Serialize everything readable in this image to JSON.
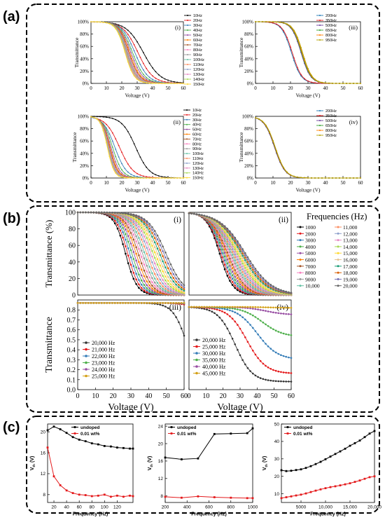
{
  "figure": {
    "panel_labels": [
      "(a)",
      "(b)",
      "(c)"
    ]
  },
  "chart_data": [
    {
      "id": "a-i",
      "type": "line",
      "panel": "(i)",
      "xlabel": "Voltage (V)",
      "ylabel": "Transmittance",
      "xlim": [
        0,
        60
      ],
      "xticks": [
        0,
        10,
        20,
        30,
        40,
        50,
        60
      ],
      "ylim": [
        0,
        100
      ],
      "yticks": [
        0,
        20,
        40,
        60,
        80,
        100
      ],
      "ytick_labels": [
        "0%",
        "20%",
        "40%",
        "60%",
        "80%",
        "100%"
      ],
      "legend": [
        "10Hz",
        "20Hz",
        "30Hz",
        "40Hz",
        "50Hz",
        "60Hz",
        "70Hz",
        "80Hz",
        "90Hz",
        "100Hz",
        "110Hz",
        "120Hz",
        "130Hz",
        "140Hz",
        "150Hz"
      ],
      "model": "sigmoid",
      "v50": [
        34.0,
        30.5,
        28.5,
        27.0,
        26.0,
        25.2,
        24.6,
        24.1,
        23.7,
        23.3,
        23.0,
        22.7,
        22.5,
        22.3,
        22.1
      ],
      "width": [
        5.5,
        4.8,
        4.3,
        4.0,
        3.8,
        3.6,
        3.5,
        3.4,
        3.3,
        3.2,
        3.2,
        3.1,
        3.1,
        3.0,
        3.0
      ],
      "ymax": [
        100,
        100,
        100,
        100,
        100,
        100,
        100,
        100,
        100,
        100,
        100,
        100,
        100,
        100,
        100
      ]
    },
    {
      "id": "a-iii",
      "type": "line",
      "panel": "(iii)",
      "xlabel": "Voltage (V)",
      "ylabel": "Transmittance",
      "xlim": [
        0,
        60
      ],
      "xticks": [
        0,
        10,
        20,
        30,
        40,
        50,
        60
      ],
      "ylim": [
        0,
        100
      ],
      "yticks": [
        0,
        20,
        40,
        60,
        80,
        100
      ],
      "ytick_labels": [
        "0%",
        "20%",
        "40%",
        "60%",
        "80%",
        "100%"
      ],
      "legend": [
        "200Hz",
        "350Hz",
        "500Hz",
        "650Hz",
        "800Hz",
        "950Hz"
      ],
      "model": "sigmoid",
      "v50": [
        20.5,
        21.0,
        26.0,
        26.3,
        26.6,
        26.9
      ],
      "width": [
        2.8,
        2.8,
        2.7,
        2.7,
        2.7,
        2.7
      ],
      "ymax": [
        100,
        100,
        100,
        100,
        100,
        100
      ]
    },
    {
      "id": "a-ii",
      "type": "line",
      "panel": "(ii)",
      "xlabel": "Voltage (V)",
      "ylabel": "Transmittance",
      "xlim": [
        0,
        60
      ],
      "xticks": [
        0,
        10,
        20,
        30,
        40,
        50,
        60
      ],
      "ylim": [
        0,
        100
      ],
      "yticks": [
        0,
        20,
        40,
        60,
        80,
        100
      ],
      "ytick_labels": [
        "0%",
        "20%",
        "40%",
        "60%",
        "80%",
        "100%"
      ],
      "legend": [
        "10Hz",
        "20Hz",
        "30Hz",
        "40Hz",
        "50Hz",
        "60Hz",
        "70Hz",
        "80Hz",
        "90Hz",
        "100Hz",
        "110Hz",
        "120Hz",
        "130Hz",
        "140Hz",
        "150Hz"
      ],
      "model": "sigmoid",
      "v50": [
        29.0,
        18.5,
        15.5,
        14.0,
        13.0,
        12.4,
        12.0,
        11.7,
        11.4,
        11.2,
        11.0,
        10.9,
        10.8,
        10.7,
        10.6
      ],
      "width": [
        4.5,
        4.5,
        3.8,
        3.2,
        2.9,
        2.7,
        2.6,
        2.5,
        2.4,
        2.4,
        2.3,
        2.3,
        2.3,
        2.2,
        2.2
      ],
      "ymax": [
        100,
        100,
        100,
        100,
        100,
        100,
        100,
        100,
        100,
        100,
        100,
        100,
        100,
        100,
        100
      ]
    },
    {
      "id": "a-iv",
      "type": "line",
      "panel": "(iv)",
      "xlabel": "Voltage (V)",
      "ylabel": "Transmittance",
      "xlim": [
        0,
        60
      ],
      "xticks": [
        0,
        10,
        20,
        30,
        40,
        50,
        60
      ],
      "ylim": [
        0,
        100
      ],
      "yticks": [
        0,
        20,
        40,
        60,
        80,
        100
      ],
      "ytick_labels": [
        "0%",
        "20%",
        "40%",
        "60%",
        "80%",
        "100%"
      ],
      "legend": [
        "200Hz",
        "350Hz",
        "500Hz",
        "650Hz",
        "800Hz",
        "950Hz"
      ],
      "model": "sigmoid",
      "v50": [
        10.8,
        10.9,
        11.0,
        11.1,
        11.2,
        11.3
      ],
      "width": [
        3.0,
        3.0,
        3.0,
        3.0,
        3.0,
        3.0
      ],
      "ymax": [
        100,
        100,
        100,
        100,
        100,
        100
      ]
    },
    {
      "id": "b-i",
      "type": "line",
      "panel": "(i)",
      "xlabel": "",
      "ylabel": "Transmittance (%)",
      "xlim": [
        0,
        60
      ],
      "xticks": [],
      "ylim": [
        0,
        100
      ],
      "yticks": [
        0,
        20,
        40,
        60,
        80,
        100
      ],
      "ytick_labels": [
        "0",
        "20",
        "40",
        "60",
        "80",
        "100"
      ],
      "legend": [
        "1000",
        "2000",
        "3000",
        "4000",
        "5000",
        "6000",
        "7000",
        "8000",
        "9000",
        "10,000",
        "11,000",
        "12,000",
        "13,000",
        "14,000",
        "15,000",
        "16,000",
        "17,000",
        "18,000",
        "19,000",
        "20,000"
      ],
      "model": "sigmoid",
      "v50": [
        27.0,
        28.2,
        29.4,
        30.6,
        31.8,
        33.0,
        34.2,
        35.4,
        36.6,
        37.8,
        39.0,
        40.2,
        41.4,
        42.6,
        43.8,
        45.0,
        46.2,
        47.4,
        48.6,
        49.8
      ],
      "width": [
        3.2,
        3.3,
        3.4,
        3.5,
        3.6,
        3.7,
        3.8,
        3.9,
        4.0,
        4.1,
        4.2,
        4.3,
        4.4,
        4.5,
        4.6,
        4.7,
        4.8,
        4.9,
        5.0,
        5.1
      ],
      "ymax": [
        100,
        100,
        100,
        100,
        100,
        100,
        100,
        100,
        100,
        100,
        100,
        100,
        100,
        100,
        100,
        100,
        100,
        100,
        100,
        100
      ]
    },
    {
      "id": "b-ii",
      "type": "line",
      "panel": "(ii)",
      "xlabel": "",
      "ylabel": "",
      "xlim": [
        0,
        60
      ],
      "xticks": [],
      "ylim": [
        0,
        100
      ],
      "yticks": [
        0,
        20,
        40,
        60,
        80,
        100
      ],
      "ytick_labels": [],
      "legend": [
        "1000",
        "2000",
        "3000",
        "4000",
        "5000",
        "6000",
        "7000",
        "8000",
        "9000",
        "10,000",
        "11,000",
        "12,000",
        "13,000",
        "14,000",
        "15,000",
        "16,000",
        "17,000",
        "18,000",
        "19,000",
        "20,000"
      ],
      "model": "sigmoid",
      "v50": [
        18.0,
        18.8,
        19.6,
        20.4,
        21.2,
        22.0,
        22.8,
        23.6,
        24.4,
        25.2,
        26.0,
        26.8,
        27.6,
        28.4,
        29.2,
        30.0,
        30.8,
        31.6,
        32.4,
        33.2
      ],
      "width": [
        3.8,
        4.0,
        4.2,
        4.4,
        4.6,
        4.8,
        5.0,
        5.2,
        5.4,
        5.6,
        5.8,
        6.0,
        6.2,
        6.4,
        6.6,
        6.8,
        7.0,
        7.2,
        7.4,
        7.6
      ],
      "ymax": [
        100,
        100,
        100,
        100,
        100,
        100,
        100,
        100,
        100,
        100,
        100,
        100,
        100,
        100,
        100,
        100,
        100,
        100,
        100,
        100
      ]
    },
    {
      "id": "b-iii",
      "type": "line",
      "panel": "(iii)",
      "xlabel": "Voltage (V)",
      "ylabel": "Transmittance",
      "xlim": [
        0,
        60
      ],
      "xticks": [
        0,
        10,
        20,
        30,
        40,
        50,
        60
      ],
      "ylim": [
        0,
        0.9
      ],
      "yticks": [
        0,
        0.1,
        0.2,
        0.3,
        0.4,
        0.5,
        0.6,
        0.7,
        0.8
      ],
      "ytick_labels": [
        "0.0",
        "0.1",
        "0.2",
        "0.3",
        "0.4",
        "0.5",
        "0.6",
        "0.7",
        "0.8"
      ],
      "legend": [
        "20,000 Hz",
        "21,000 Hz",
        "22,000 Hz",
        "23,000 Hz",
        "24,000 Hz",
        "25,000 Hz"
      ],
      "model": "sigmoid",
      "v50": [
        62.0,
        80.0,
        85.0,
        90.0,
        95.0,
        100.0
      ],
      "width": [
        4.0,
        5.0,
        5.0,
        5.0,
        5.0,
        5.0
      ],
      "ymax": [
        0.87,
        0.87,
        0.87,
        0.87,
        0.87,
        0.87
      ]
    },
    {
      "id": "b-iv",
      "type": "line",
      "panel": "(iv)",
      "xlabel": "Voltage (V)",
      "ylabel": "",
      "xlim": [
        0,
        60
      ],
      "xticks": [
        0,
        10,
        20,
        30,
        40,
        50,
        60
      ],
      "ylim": [
        0,
        0.9
      ],
      "yticks": [
        0,
        0.1,
        0.2,
        0.3,
        0.4,
        0.5,
        0.6,
        0.7,
        0.8
      ],
      "ytick_labels": [],
      "legend": [
        "20,000 Hz",
        "25,000 Hz",
        "30,000 Hz",
        "35,000 Hz",
        "40,000 Hz",
        "45,000 Hz"
      ],
      "model": "decay",
      "y_high": [
        0.83,
        0.83,
        0.83,
        0.83,
        0.83,
        0.83
      ],
      "y_low": [
        0.08,
        0.16,
        0.3,
        0.53,
        0.75,
        0.82
      ],
      "v50": [
        27.0,
        34.0,
        40.0,
        43.0,
        45.0,
        48.0
      ],
      "width": [
        5.0,
        5.5,
        6.0,
        6.0,
        6.0,
        6.0
      ]
    },
    {
      "id": "c-1",
      "type": "line",
      "xlabel": "Frequency (Hz)",
      "ylabel": "Vth (V)",
      "xlim": [
        10,
        145
      ],
      "xticks": [
        20,
        40,
        60,
        80,
        100,
        120
      ],
      "ylim": [
        6.5,
        21.5
      ],
      "yticks": [
        8,
        12,
        16,
        20
      ],
      "series": [
        {
          "name": "undoped",
          "color": "#000000",
          "x": [
            10,
            20,
            30,
            40,
            50,
            60,
            70,
            80,
            90,
            100,
            110,
            120,
            130,
            140,
            145
          ],
          "y": [
            20.3,
            21.0,
            20.5,
            19.8,
            19.0,
            18.5,
            18.2,
            17.8,
            17.6,
            17.3,
            17.2,
            17.0,
            16.9,
            16.8,
            16.8
          ]
        },
        {
          "name": "0.01 wt%",
          "color": "#e41a1c",
          "x": [
            10,
            20,
            30,
            40,
            50,
            60,
            70,
            80,
            90,
            100,
            110,
            120,
            130,
            140,
            145
          ],
          "y": [
            17.0,
            11.5,
            9.8,
            8.8,
            8.3,
            8.0,
            7.9,
            7.7,
            7.8,
            8.0,
            7.6,
            7.8,
            7.6,
            7.8,
            7.7
          ]
        }
      ]
    },
    {
      "id": "c-2",
      "type": "line",
      "xlabel": "Frequency (Hz)",
      "ylabel": "Vth (V)",
      "xlim": [
        200,
        1000
      ],
      "xticks": [
        200,
        400,
        600,
        800,
        1000
      ],
      "ylim": [
        6.5,
        24.5
      ],
      "yticks": [
        8,
        12,
        16,
        20,
        24
      ],
      "series": [
        {
          "name": "undoped",
          "color": "#000000",
          "x": [
            200,
            350,
            500,
            650,
            800,
            950,
            1000
          ],
          "y": [
            16.8,
            16.4,
            16.6,
            22.2,
            22.3,
            22.4,
            23.5
          ]
        },
        {
          "name": "0.01 wt%",
          "color": "#e41a1c",
          "x": [
            200,
            350,
            500,
            650,
            800,
            950,
            1000
          ],
          "y": [
            7.8,
            7.6,
            7.9,
            7.7,
            7.6,
            7.5,
            7.5
          ]
        }
      ]
    },
    {
      "id": "c-3",
      "type": "line",
      "xlabel": "Frequency (Hz)",
      "ylabel": "Vth (V)",
      "xlim": [
        1000,
        20000
      ],
      "xticks": [
        5000,
        10000,
        15000,
        20000
      ],
      "xtick_labels": [
        "5000",
        "10,000",
        "15,000",
        "20,000"
      ],
      "ylim": [
        5,
        50
      ],
      "yticks": [
        10,
        20,
        30,
        40,
        50
      ],
      "series": [
        {
          "name": "undoped",
          "color": "#000000",
          "x": [
            1000,
            2000,
            3000,
            4000,
            5000,
            6000,
            7000,
            8000,
            9000,
            10000,
            11000,
            12000,
            13000,
            14000,
            15000,
            16000,
            17000,
            18000,
            19000,
            20000
          ],
          "y": [
            23.5,
            23.0,
            23.2,
            23.6,
            24.0,
            24.8,
            25.8,
            27.0,
            28.3,
            29.8,
            31.3,
            32.8,
            34.3,
            35.8,
            37.5,
            39.0,
            40.5,
            42.5,
            44.5,
            46.0
          ]
        },
        {
          "name": "0.01 wt%",
          "color": "#e41a1c",
          "x": [
            1000,
            2000,
            3000,
            4000,
            5000,
            6000,
            7000,
            8000,
            9000,
            10000,
            11000,
            12000,
            13000,
            14000,
            15000,
            16000,
            17000,
            18000,
            19000,
            20000
          ],
          "y": [
            7.5,
            8.0,
            8.5,
            9.0,
            9.5,
            10.2,
            11.0,
            11.8,
            12.5,
            13.2,
            13.8,
            14.3,
            14.8,
            15.4,
            16.0,
            16.8,
            17.6,
            18.6,
            19.5,
            20.0
          ]
        }
      ]
    }
  ],
  "b_legend": {
    "title": "Frequencies (Hz)",
    "col1": [
      "1000",
      "2000",
      "3000",
      "4000",
      "5000",
      "6000",
      "7000",
      "8000",
      "9000",
      "10,000"
    ],
    "col2": [
      "11,000",
      "12,000",
      "13,000",
      "14,000",
      "15,000",
      "16,000",
      "17,000",
      "18,000",
      "19,000",
      "20,000"
    ]
  },
  "palette": [
    "#000000",
    "#e41a1c",
    "#377eb8",
    "#4daf4a",
    "#984ea3",
    "#ff7f00",
    "#a65628",
    "#f781bf",
    "#999999",
    "#66c2a5",
    "#fc8d62",
    "#8da0cb",
    "#e78ac3",
    "#a6d854",
    "#ffd92f",
    "#e5c494",
    "#1b9e77",
    "#d95f02",
    "#7570b3",
    "#666666"
  ],
  "palette_b3": [
    "#333333",
    "#e41a1c",
    "#377eb8",
    "#4daf4a",
    "#984ea3",
    "#d4a017"
  ],
  "palette_a_right": [
    "#1f78b4",
    "#e31a1c",
    "#6a3d9a",
    "#33a02c",
    "#ff7f00",
    "#b2a100"
  ]
}
